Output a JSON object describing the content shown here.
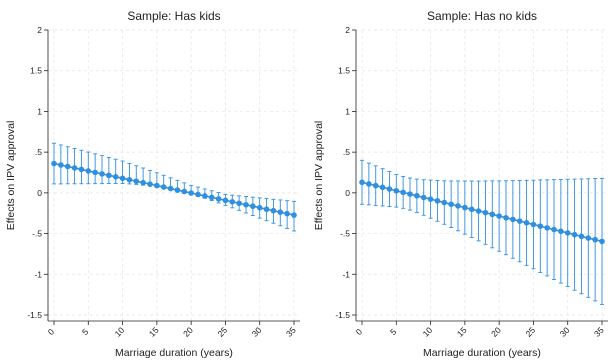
{
  "figure": {
    "ylabel": "Effects on IPV approval",
    "xlabel": "Marriage duration (years)"
  },
  "style": {
    "series_color": "#2f8fe0",
    "grid_color": "#e3e3e3",
    "axis_color": "#222222",
    "background": "#ffffff"
  },
  "chart_data": [
    {
      "type": "line",
      "title": "Sample: Has kids",
      "xlabel": "Marriage duration (years)",
      "ylabel": "Effects on IPV approval",
      "xlim": [
        0,
        35
      ],
      "ylim": [
        -1.5,
        2
      ],
      "grid": true,
      "xticks": [
        0,
        5,
        10,
        15,
        20,
        25,
        30,
        35
      ],
      "xtick_labels": [
        "0",
        "5",
        "10",
        "15",
        "20",
        "25",
        "30",
        "35"
      ],
      "yticks": [
        -1.5,
        -1,
        -0.5,
        0,
        0.5,
        1,
        1.5,
        2
      ],
      "ytick_labels": [
        "-1.5",
        "-1",
        "-.5",
        "0",
        ".5",
        "1",
        "1.5",
        "2"
      ],
      "series": [
        {
          "x": [
            0,
            1,
            2,
            3,
            4,
            5,
            6,
            7,
            8,
            9,
            10,
            11,
            12,
            13,
            14,
            15,
            16,
            17,
            18,
            19,
            20,
            21,
            22,
            23,
            24,
            25,
            26,
            27,
            28,
            29,
            30,
            31,
            32,
            33,
            34,
            35
          ],
          "values": [
            0.36,
            0.342,
            0.324,
            0.306,
            0.288,
            0.269,
            0.251,
            0.233,
            0.215,
            0.197,
            0.179,
            0.161,
            0.143,
            0.125,
            0.107,
            0.089,
            0.071,
            0.053,
            0.034,
            0.016,
            -0.002,
            -0.02,
            -0.038,
            -0.056,
            -0.074,
            -0.092,
            -0.11,
            -0.128,
            -0.146,
            -0.164,
            -0.182,
            -0.201,
            -0.219,
            -0.237,
            -0.255,
            -0.273
          ],
          "ci_lower": [
            0.11,
            0.11,
            0.111,
            0.111,
            0.112,
            0.112,
            0.113,
            0.113,
            0.114,
            0.114,
            0.115,
            0.11,
            0.104,
            0.094,
            0.084,
            0.073,
            0.056,
            0.039,
            0.021,
            0.003,
            -0.015,
            -0.04,
            -0.066,
            -0.094,
            -0.123,
            -0.153,
            -0.184,
            -0.215,
            -0.247,
            -0.279,
            -0.31,
            -0.342,
            -0.373,
            -0.405,
            -0.436,
            -0.468
          ],
          "ci_upper": [
            0.61,
            0.588,
            0.566,
            0.545,
            0.523,
            0.501,
            0.479,
            0.457,
            0.435,
            0.413,
            0.391,
            0.362,
            0.333,
            0.305,
            0.276,
            0.247,
            0.216,
            0.185,
            0.154,
            0.123,
            0.092,
            0.07,
            0.048,
            0.026,
            0.004,
            -0.019,
            -0.028,
            -0.036,
            -0.045,
            -0.053,
            -0.062,
            -0.07,
            -0.079,
            -0.087,
            -0.096,
            -0.104
          ]
        }
      ]
    },
    {
      "type": "line",
      "title": "Sample: Has no kids",
      "xlabel": "Marriage duration (years)",
      "ylabel": "Effects on IPV approval",
      "xlim": [
        0,
        35
      ],
      "ylim": [
        -1.5,
        2
      ],
      "grid": true,
      "xticks": [
        0,
        5,
        10,
        15,
        20,
        25,
        30,
        35
      ],
      "xtick_labels": [
        "0",
        "5",
        "10",
        "15",
        "20",
        "25",
        "30",
        "35"
      ],
      "yticks": [
        -1.5,
        -1,
        -0.5,
        0,
        0.5,
        1,
        1.5,
        2
      ],
      "ytick_labels": [
        "-1.5",
        "-1",
        "-.5",
        "0",
        ".5",
        "1",
        "1.5",
        "2"
      ],
      "series": [
        {
          "x": [
            0,
            1,
            2,
            3,
            4,
            5,
            6,
            7,
            8,
            9,
            10,
            11,
            12,
            13,
            14,
            15,
            16,
            17,
            18,
            19,
            20,
            21,
            22,
            23,
            24,
            25,
            26,
            27,
            28,
            29,
            30,
            31,
            32,
            33,
            34,
            35
          ],
          "values": [
            0.13,
            0.109,
            0.089,
            0.068,
            0.047,
            0.026,
            0.006,
            -0.015,
            -0.036,
            -0.057,
            -0.077,
            -0.098,
            -0.119,
            -0.14,
            -0.16,
            -0.181,
            -0.202,
            -0.223,
            -0.243,
            -0.264,
            -0.285,
            -0.306,
            -0.326,
            -0.347,
            -0.368,
            -0.389,
            -0.409,
            -0.43,
            -0.451,
            -0.472,
            -0.492,
            -0.513,
            -0.534,
            -0.555,
            -0.575,
            -0.596
          ],
          "ci_lower": [
            -0.14,
            -0.147,
            -0.154,
            -0.161,
            -0.168,
            -0.175,
            -0.19,
            -0.212,
            -0.241,
            -0.275,
            -0.311,
            -0.348,
            -0.386,
            -0.426,
            -0.466,
            -0.507,
            -0.548,
            -0.59,
            -0.632,
            -0.675,
            -0.717,
            -0.76,
            -0.803,
            -0.847,
            -0.89,
            -0.933,
            -0.977,
            -1.02,
            -1.064,
            -1.108,
            -1.151,
            -1.195,
            -1.239,
            -1.283,
            -1.327,
            -1.37
          ],
          "ci_upper": [
            0.4,
            0.365,
            0.332,
            0.297,
            0.262,
            0.227,
            0.202,
            0.182,
            0.169,
            0.161,
            0.157,
            0.152,
            0.148,
            0.146,
            0.146,
            0.145,
            0.145,
            0.145,
            0.146,
            0.147,
            0.147,
            0.148,
            0.15,
            0.153,
            0.154,
            0.155,
            0.159,
            0.16,
            0.162,
            0.164,
            0.167,
            0.169,
            0.171,
            0.173,
            0.177,
            0.178
          ]
        }
      ]
    }
  ]
}
